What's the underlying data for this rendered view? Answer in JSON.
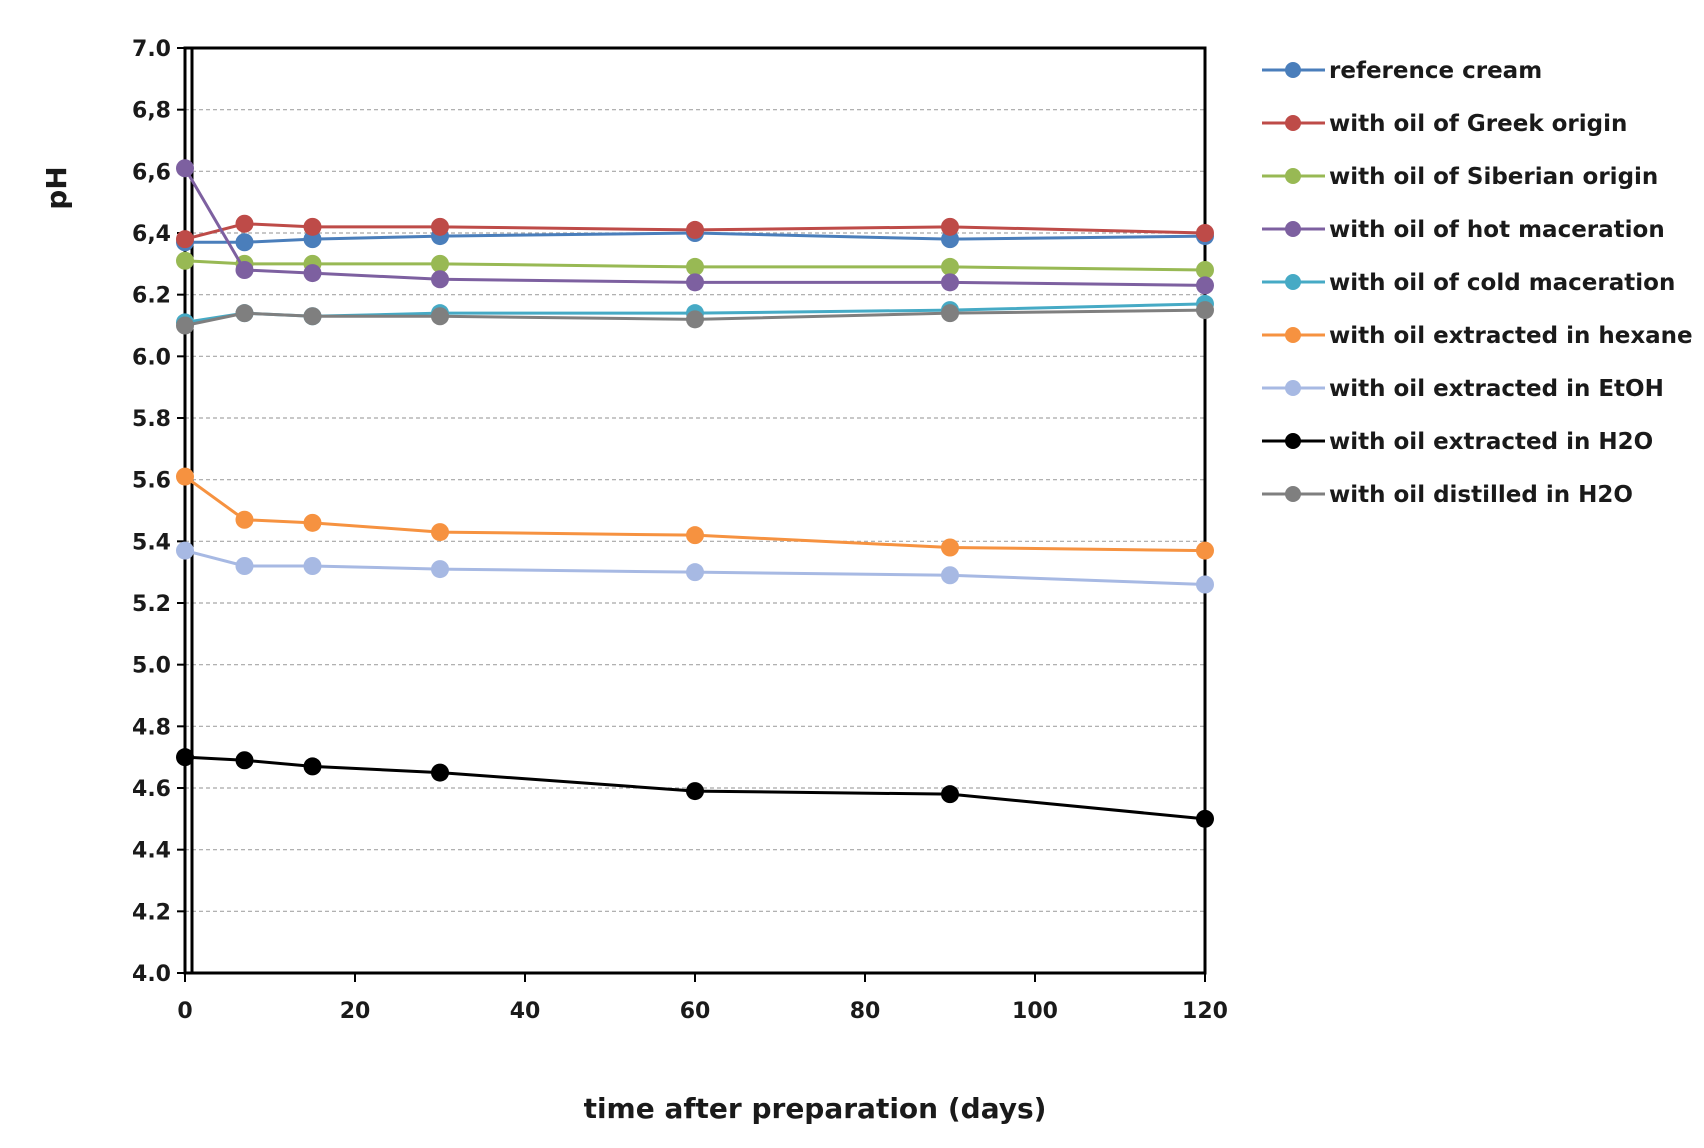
{
  "chart_data": {
    "type": "line",
    "title": "",
    "xlabel": "time after preparation (days)",
    "ylabel": "pH",
    "xlim": [
      0,
      120
    ],
    "ylim": [
      4.0,
      7.0
    ],
    "x_ticks": [
      0,
      20,
      40,
      60,
      80,
      100,
      120
    ],
    "y_ticks": [
      {
        "value": 4.0,
        "label": "4.0"
      },
      {
        "value": 4.2,
        "label": "4.2"
      },
      {
        "value": 4.4,
        "label": "4.4"
      },
      {
        "value": 4.6,
        "label": "4.6"
      },
      {
        "value": 4.8,
        "label": "4.8"
      },
      {
        "value": 5.0,
        "label": "5.0"
      },
      {
        "value": 5.2,
        "label": "5.2"
      },
      {
        "value": 5.4,
        "label": "5.4"
      },
      {
        "value": 5.6,
        "label": "5.6"
      },
      {
        "value": 5.8,
        "label": "5.8"
      },
      {
        "value": 6.0,
        "label": "6.0"
      },
      {
        "value": 6.2,
        "label": "6.2"
      },
      {
        "value": 6.4,
        "label": "6,4"
      },
      {
        "value": 6.6,
        "label": "6,6"
      },
      {
        "value": 6.8,
        "label": "6,8"
      },
      {
        "value": 7.0,
        "label": "7.0"
      }
    ],
    "grid": "horizontal dashed",
    "legend_position": "right",
    "x": [
      0,
      7,
      15,
      30,
      60,
      90,
      120
    ],
    "series": [
      {
        "name": "reference cream",
        "color": "#4a7ebb",
        "values": [
          6.37,
          6.37,
          6.38,
          6.39,
          6.4,
          6.38,
          6.39
        ]
      },
      {
        "name": "with oil of Greek origin",
        "color": "#be4b48",
        "values": [
          6.38,
          6.43,
          6.42,
          6.42,
          6.41,
          6.42,
          6.4
        ]
      },
      {
        "name": "with oil of Siberian origin",
        "color": "#98b954",
        "values": [
          6.31,
          6.3,
          6.3,
          6.3,
          6.29,
          6.29,
          6.28
        ]
      },
      {
        "name": "with oil of hot maceration",
        "color": "#7d60a0",
        "values": [
          6.61,
          6.28,
          6.27,
          6.25,
          6.24,
          6.24,
          6.23
        ]
      },
      {
        "name": "with oil of cold maceration",
        "color": "#46aac5",
        "values": [
          6.11,
          6.14,
          6.13,
          6.14,
          6.14,
          6.15,
          6.17
        ]
      },
      {
        "name": "with oil extracted in hexane",
        "color": "#f69240",
        "values": [
          5.61,
          5.47,
          5.46,
          5.43,
          5.42,
          5.38,
          5.37
        ]
      },
      {
        "name": "with oil extracted in EtOH",
        "color": "#a7b9e3",
        "values": [
          5.37,
          5.32,
          5.32,
          5.31,
          5.3,
          5.29,
          5.26
        ]
      },
      {
        "name": "with oil extracted in H2O",
        "color": "#000000",
        "values": [
          4.7,
          4.69,
          4.67,
          4.65,
          4.59,
          4.58,
          4.5
        ]
      },
      {
        "name": "with oil distilled in H2O",
        "color": "#7f7f7f",
        "values": [
          6.1,
          6.14,
          6.13,
          6.13,
          6.12,
          6.14,
          6.15
        ]
      }
    ]
  }
}
